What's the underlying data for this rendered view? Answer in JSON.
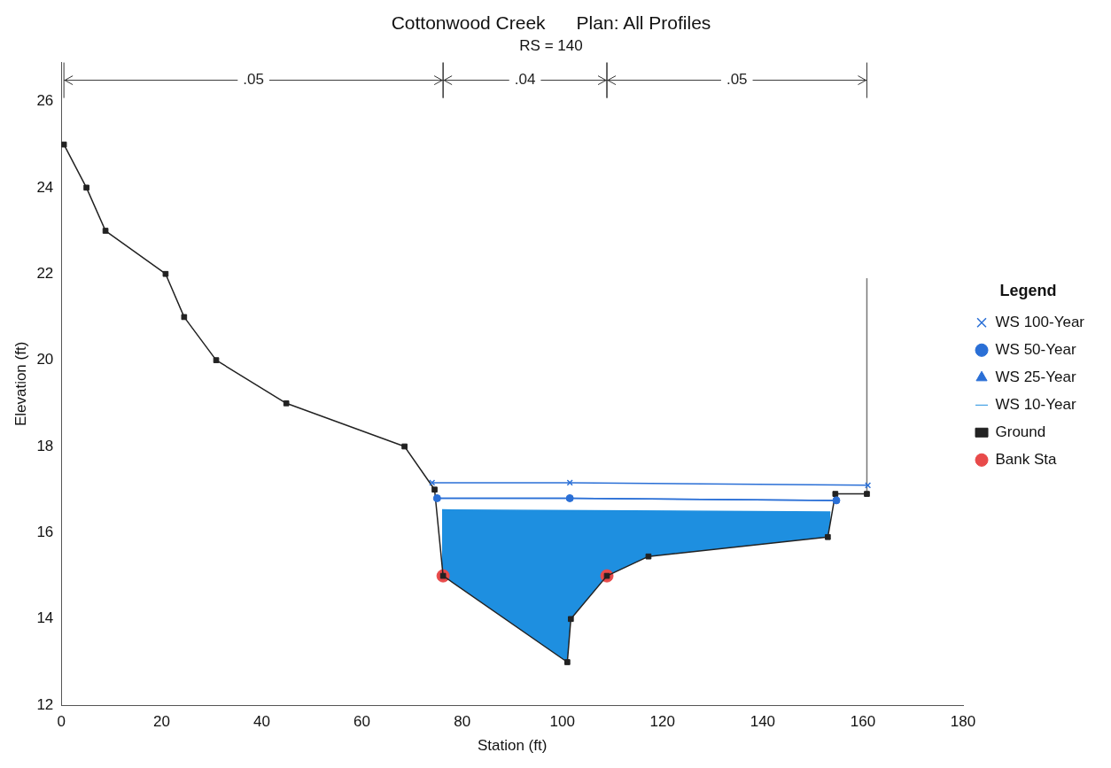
{
  "chart_data": {
    "type": "line",
    "title": "Cottonwood Creek      Plan: All Profiles",
    "subtitle": "RS = 140",
    "xlabel": "Station (ft)",
    "ylabel": "Elevation (ft)",
    "legend_title": "Legend",
    "xlim": [
      0,
      180
    ],
    "xticks": [
      0,
      20,
      40,
      60,
      80,
      100,
      120,
      140,
      160,
      180
    ],
    "ylim": [
      12,
      26.9
    ],
    "yticks": [
      12,
      14,
      16,
      18,
      20,
      22,
      24,
      26
    ],
    "grid": false,
    "legend": "right",
    "annotations": [
      ".05",
      ".04",
      ".05"
    ],
    "series": [
      {
        "name": "WS 100-Year",
        "color": "#2a6fd6",
        "marker": "cross",
        "x": [
          74,
          101.5,
          161
        ],
        "values": [
          17.16,
          17.16,
          17.1
        ]
      },
      {
        "name": "WS 50-Year",
        "color": "#2a6fd6",
        "marker": "circle",
        "x": [
          75,
          101.5,
          154.7
        ],
        "values": [
          16.8,
          16.8,
          16.75
        ]
      },
      {
        "name": "WS 25-Year",
        "color": "#2a6fd6",
        "marker": "triangle",
        "x": [
          75,
          101.5,
          154.7
        ],
        "values": [
          16.8,
          16.8,
          16.75
        ]
      },
      {
        "name": "WS 10-Year",
        "type": "area",
        "color": "#1e8fe0",
        "marker": "none",
        "x": [
          76,
          153.5
        ],
        "values": [
          16.53,
          16.48
        ]
      },
      {
        "name": "Ground",
        "color": "#222222",
        "marker": "square",
        "x": [
          0.5,
          5,
          8.8,
          20.8,
          24.5,
          30.9,
          44.9,
          68.5,
          74.5,
          76.2,
          101,
          101.7,
          108.9,
          117.2,
          153,
          154.5,
          160.8
        ],
        "values": [
          25,
          24,
          23,
          22,
          21,
          20,
          19,
          18,
          17,
          15,
          13,
          14,
          15,
          15.45,
          15.9,
          16.9,
          16.9
        ]
      },
      {
        "color": "#777777",
        "marker": "none",
        "x": [
          160.8,
          160.8
        ],
        "values": [
          16.9,
          21.9
        ]
      },
      {
        "name": "Bank Sta",
        "type": "scatter",
        "color": "#e84a4a",
        "marker": "circle",
        "x": [
          76.2,
          108.9
        ],
        "values": [
          15,
          15
        ]
      }
    ]
  }
}
